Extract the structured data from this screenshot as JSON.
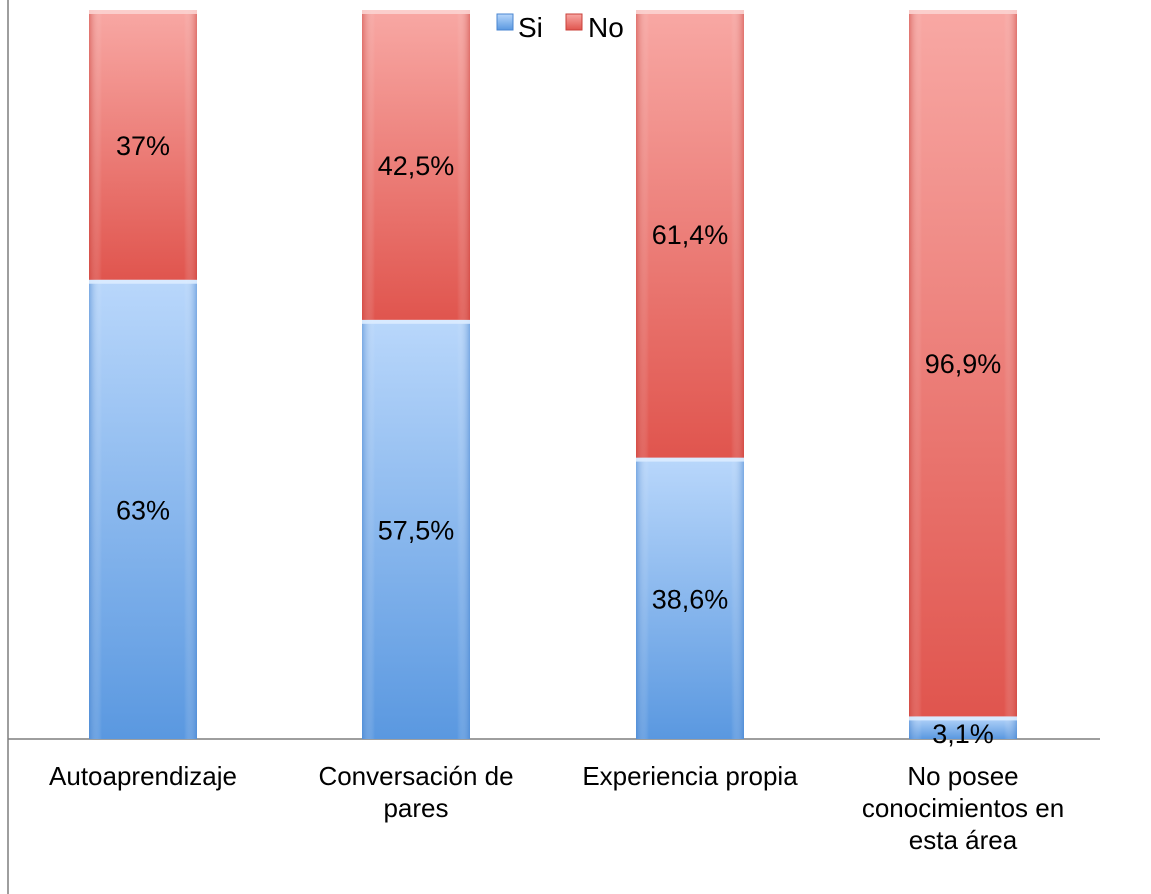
{
  "chart_data": {
    "type": "bar",
    "stacked": true,
    "normalized_percent": true,
    "categories": [
      [
        "Autoaprendizaje"
      ],
      [
        "Conversación de",
        "pares"
      ],
      [
        "Experiencia propia"
      ],
      [
        "No posee",
        "conocimientos en",
        "esta área"
      ]
    ],
    "series": [
      {
        "name": "Si",
        "values": [
          63,
          57.5,
          38.6,
          3.1
        ],
        "labels": [
          "63%",
          "57,5%",
          "38,6%",
          "3,1%"
        ],
        "color": "#6ea6e8"
      },
      {
        "name": "No",
        "values": [
          37,
          42.5,
          61.4,
          96.9
        ],
        "labels": [
          "37%",
          "42,5%",
          "61,4%",
          "96,9%"
        ],
        "color": "#e8706a"
      }
    ],
    "ylim": [
      0,
      100
    ],
    "grid": false,
    "legend": {
      "position": "top",
      "entries": [
        "Si",
        "No"
      ]
    }
  }
}
